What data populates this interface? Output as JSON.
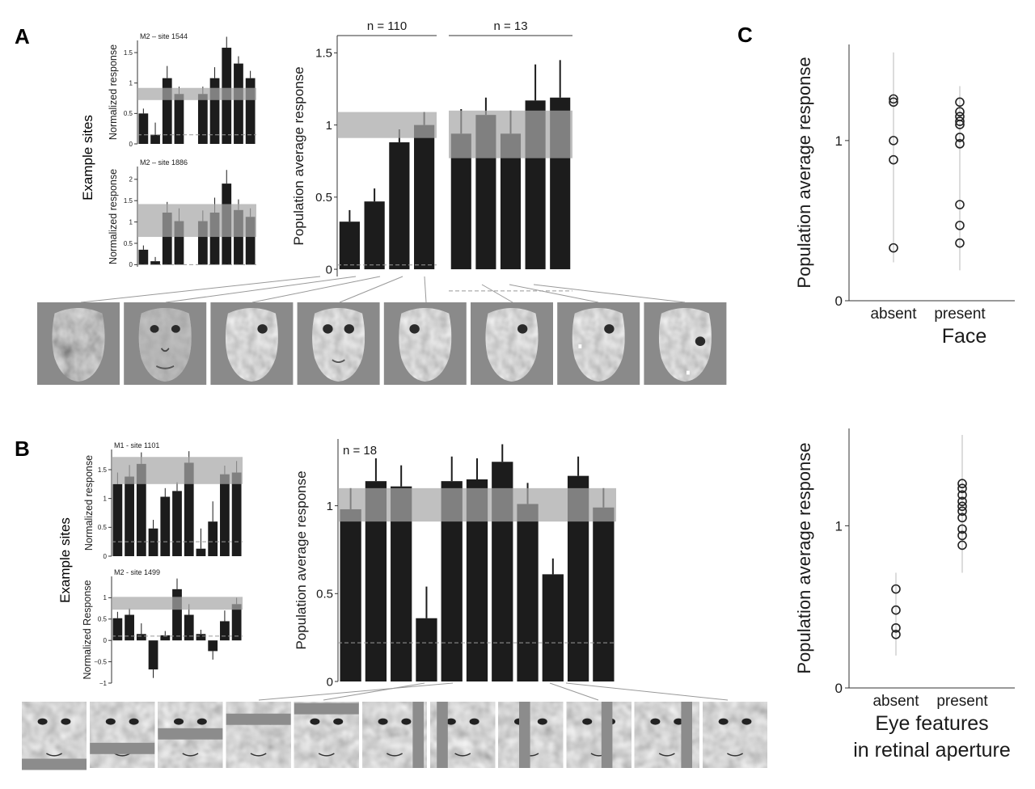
{
  "panels": {
    "A": {
      "letter": "A",
      "side_label": "Example sites"
    },
    "B": {
      "letter": "B",
      "side_label": "Example sites"
    },
    "C": {
      "letter": "C"
    }
  },
  "chart_data": [
    {
      "id": "A_site1",
      "type": "bar",
      "title": "M2 – site 1544",
      "ylabel": "Normalized response",
      "ylim": [
        0,
        1.7
      ],
      "yticks": [
        "0",
        "0.5",
        "1",
        "1.5"
      ],
      "values": [
        0.5,
        0.15,
        1.08,
        0.82,
        0,
        0.82,
        1.08,
        1.58,
        1.32,
        1.08
      ],
      "errors": [
        0.08,
        0.2,
        0.2,
        0.12,
        0,
        0.12,
        0.18,
        0.18,
        0.12,
        0.12
      ],
      "band": [
        0.72,
        0.92
      ],
      "baseline": 0.15
    },
    {
      "id": "A_site2",
      "type": "bar",
      "title": "M2 – site 1886",
      "ylabel": "Normalized response",
      "ylim": [
        -0.05,
        2.3
      ],
      "yticks": [
        "0",
        "0.5",
        "1",
        "1.5",
        "2"
      ],
      "values": [
        0.35,
        0.08,
        1.22,
        1.02,
        0,
        1.02,
        1.22,
        1.9,
        1.28,
        1.12
      ],
      "errors": [
        0.1,
        0.1,
        0.25,
        0.3,
        0,
        0.25,
        0.35,
        0.32,
        0.25,
        0.2
      ],
      "band": [
        0.65,
        1.42
      ],
      "baseline": 0.0
    },
    {
      "id": "A_main",
      "type": "bar",
      "ylabel": "Population average response",
      "ylim": [
        -0.05,
        1.62
      ],
      "yticks": [
        "0",
        "0.5",
        "1",
        "1.5"
      ],
      "groups": [
        {
          "label": "n = 110",
          "values": [
            0.33,
            0.47,
            0.88,
            1.0
          ],
          "errors": [
            0.08,
            0.09,
            0.09,
            0.09
          ],
          "band": [
            0.91,
            1.09
          ],
          "baseline": 0.03
        },
        {
          "label": "n = 13",
          "values": [
            0.94,
            1.07,
            0.94,
            1.17,
            1.19
          ],
          "errors": [
            0.17,
            0.12,
            0.16,
            0.25,
            0.26
          ],
          "band": [
            0.77,
            1.1
          ],
          "baseline": -0.15
        }
      ]
    },
    {
      "id": "B_site1",
      "type": "bar",
      "title": "M1 - site 1101",
      "ylabel": "Normalized response",
      "ylim": [
        0,
        1.85
      ],
      "yticks": [
        "0",
        "0.5",
        "1",
        "1.5"
      ],
      "values": [
        1.25,
        1.38,
        1.6,
        0.48,
        1.03,
        1.13,
        1.62,
        0.13,
        0.6,
        1.42,
        1.45
      ],
      "errors": [
        0.2,
        0.2,
        0.2,
        0.15,
        0.15,
        0.15,
        0.2,
        0.35,
        0.35,
        0.15,
        0.2
      ],
      "band": [
        1.25,
        1.72
      ],
      "baseline": 0.25
    },
    {
      "id": "B_site2",
      "type": "bar",
      "title": "M2 - site 1499",
      "ylabel": "Normalized Response",
      "ylim": [
        -1,
        1.5
      ],
      "yticks": [
        "−1",
        "−0.5",
        "0",
        "0.5",
        "1"
      ],
      "values": [
        0.52,
        0.6,
        0.15,
        -0.68,
        0.12,
        1.2,
        0.6,
        0.15,
        -0.25,
        0.45,
        0.85
      ],
      "errors": [
        0.15,
        0.15,
        0.25,
        0.2,
        0.1,
        0.25,
        0.25,
        0.1,
        0.2,
        0.25,
        0.15
      ],
      "band": [
        0.72,
        1.02
      ],
      "baseline": 0.1
    },
    {
      "id": "B_main",
      "type": "bar",
      "label": "n = 18",
      "ylabel": "Population average response",
      "ylim": [
        0,
        1.38
      ],
      "yticks": [
        "0",
        "0.5",
        "1"
      ],
      "values": [
        0.98,
        1.14,
        1.11,
        0.36,
        1.14,
        1.15,
        1.25,
        1.01,
        0.61,
        1.17,
        0.99
      ],
      "errors": [
        0.12,
        0.13,
        0.12,
        0.18,
        0.14,
        0.12,
        0.1,
        0.12,
        0.09,
        0.11,
        0.11
      ],
      "band": [
        0.91,
        1.1
      ],
      "baseline": 0.22
    },
    {
      "id": "C_top",
      "type": "scatter",
      "ylabel": "Population average response",
      "xlabel": "Face",
      "ylim": [
        0,
        1.6
      ],
      "yticks": [
        "0",
        "1"
      ],
      "categories": [
        "absent",
        "present"
      ],
      "points": [
        {
          "x": "absent",
          "y": [
            1.26,
            1.24,
            1.0,
            0.88,
            0.33
          ],
          "range": [
            0.24,
            1.55
          ]
        },
        {
          "x": "present",
          "y": [
            1.24,
            1.18,
            1.15,
            1.12,
            1.1,
            1.02,
            0.98,
            0.6,
            0.47,
            0.36
          ],
          "range": [
            0.19,
            1.34
          ]
        }
      ]
    },
    {
      "id": "C_bottom",
      "type": "scatter",
      "ylabel": "Population average response",
      "xlabel": [
        "Eye features",
        "in retinal aperture"
      ],
      "ylim": [
        0,
        1.6
      ],
      "yticks": [
        "0",
        "1"
      ],
      "categories": [
        "absent",
        "present"
      ],
      "points": [
        {
          "x": "absent",
          "y": [
            0.61,
            0.48,
            0.37,
            0.33
          ],
          "range": [
            0.2,
            0.71
          ]
        },
        {
          "x": "present",
          "y": [
            1.26,
            1.23,
            1.19,
            1.15,
            1.12,
            1.09,
            1.05,
            0.98,
            0.94,
            0.88
          ],
          "range": [
            0.71,
            1.56
          ]
        }
      ]
    }
  ],
  "stimuli": {
    "A": [
      "noise face",
      "full face",
      "eye only",
      "both eyes",
      "left eye",
      "right eye",
      "eye with dot",
      "shifted eye with dot"
    ],
    "B": [
      "bar bottom",
      "bar mouth",
      "bar nose",
      "bar eyes",
      "bar brow",
      "vertical bar right",
      "vertical bar center-right",
      "vertical bar center",
      "vertical bar center-left",
      "vertical bar left",
      "full face"
    ]
  }
}
